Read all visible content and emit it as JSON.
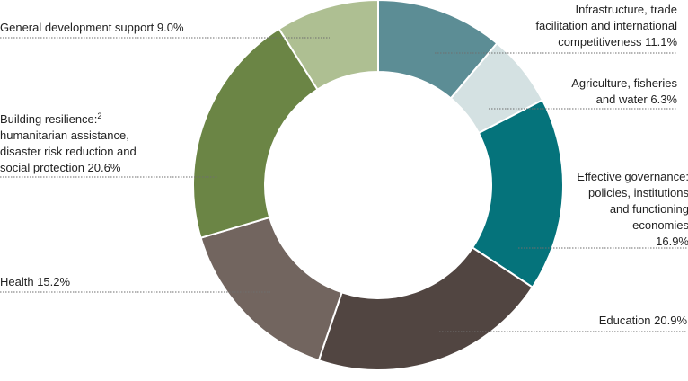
{
  "chart_data": {
    "type": "pie",
    "donut": true,
    "title": "",
    "slices": [
      {
        "label_lines": [
          "Infrastructure, trade",
          "facilitation and international",
          "competitiveness 11.1%"
        ],
        "value": 11.1,
        "color": "#5c8d95"
      },
      {
        "label_lines": [
          "Agriculture, fisheries",
          "and water 6.3%"
        ],
        "value": 6.3,
        "color": "#d4e1e2"
      },
      {
        "label_lines": [
          "Effective governance:",
          "policies, institutions",
          "and functioning",
          "economies",
          "16.9%"
        ],
        "value": 16.9,
        "color": "#05737b"
      },
      {
        "label_lines": [
          "Education 20.9%"
        ],
        "value": 20.9,
        "color": "#514541"
      },
      {
        "label_lines": [
          "Health 15.2%"
        ],
        "value": 15.2,
        "color": "#72655f"
      },
      {
        "label_lines": [
          "Building resilience:",
          "humanitarian assistance,",
          "disaster risk reduction and",
          "social protection 20.6%"
        ],
        "label_superscript": "2",
        "value": 20.6,
        "color": "#6b8545"
      },
      {
        "label_lines": [
          "General development support 9.0%"
        ],
        "value": 9.0,
        "color": "#aebf92"
      }
    ]
  }
}
